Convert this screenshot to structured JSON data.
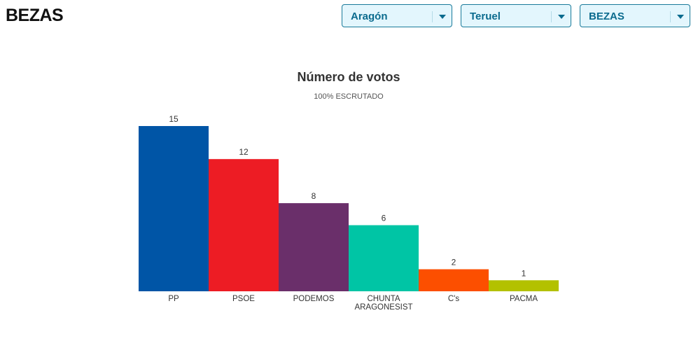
{
  "header": {
    "title": "BEZAS"
  },
  "selectors": [
    {
      "value": "Aragón"
    },
    {
      "value": "Teruel"
    },
    {
      "value": "BEZAS"
    }
  ],
  "chart_data": {
    "type": "bar",
    "title": "Número de votos",
    "subtitle": "100% ESCRUTADO",
    "categories": [
      "PP",
      "PSOE",
      "PODEMOS",
      "CHUNTA ARAGONESIST",
      "C's",
      "PACMA"
    ],
    "values": [
      15,
      12,
      8,
      6,
      2,
      1
    ],
    "colors": [
      "#0055a6",
      "#ed1c24",
      "#6a2f6a",
      "#00c5a5",
      "#fc4f00",
      "#b3c100"
    ],
    "ylim": [
      0,
      15
    ],
    "grid": false
  }
}
